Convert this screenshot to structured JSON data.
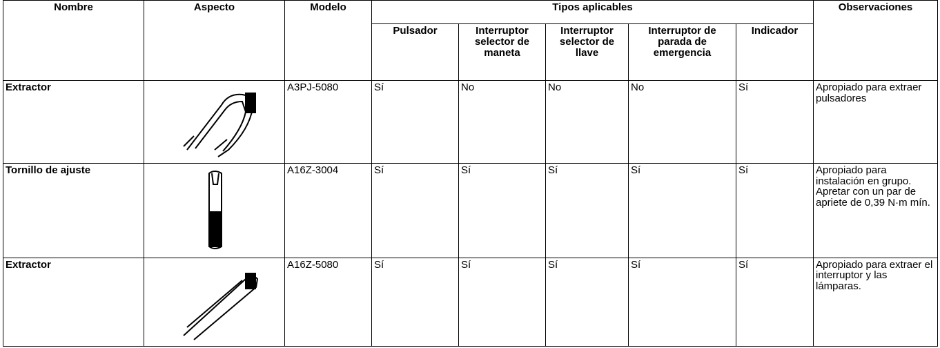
{
  "table": {
    "header": [
      "Nombre",
      "Aspecto",
      "Modelo",
      "Tipos aplicables",
      "Observaciones"
    ],
    "subheader": [
      "Pulsador",
      "Interruptor selector de maneta",
      "Interruptor selector de llave",
      "Interruptor de parada de emergencia",
      "Indicador"
    ],
    "rows": [
      {
        "nombre": "Extractor",
        "modelo": "A3PJ-5080",
        "tipos": [
          "Sí",
          "No",
          "No",
          "No",
          "Sí"
        ],
        "observaciones": [
          "Apropiado para extraer pulsadores"
        ]
      },
      {
        "nombre": "Tornillo de ajuste",
        "modelo": "A16Z-3004",
        "tipos": [
          "Sí",
          "Sí",
          "Sí",
          "Sí",
          "Sí"
        ],
        "observaciones": [
          "Apropiado para instalación en grupo.",
          "Apretar con un par de apriete de 0,39 N·m mín."
        ]
      },
      {
        "nombre": "Extractor",
        "modelo": "A16Z-5080",
        "tipos": [
          "Sí",
          "Sí",
          "Sí",
          "Sí",
          "Sí"
        ],
        "observaciones": [
          "Apropiado para extraer el interruptor y las lámparas."
        ]
      }
    ]
  }
}
